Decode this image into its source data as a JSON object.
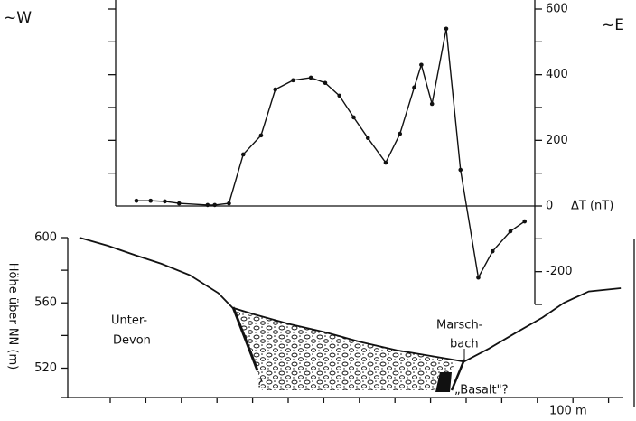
{
  "chart_data": [
    {
      "type": "line",
      "markers": true,
      "color": "#111111",
      "y_label": "ΔT (nT)",
      "x": [
        18,
        22,
        26,
        30,
        38,
        40,
        44,
        48,
        53,
        57,
        62,
        67,
        71,
        75,
        79,
        83,
        88,
        92,
        96,
        98,
        101,
        105,
        109,
        114,
        118,
        123,
        127
      ],
      "values": [
        16,
        16,
        14,
        8,
        3,
        3,
        8,
        157,
        215,
        355,
        383,
        391,
        375,
        336,
        270,
        207,
        132,
        220,
        361,
        430,
        311,
        540,
        110,
        -218,
        -138,
        -77,
        -47
      ],
      "xlim": [
        0,
        157
      ],
      "ylim": [
        -300,
        600
      ],
      "yticks": [
        -200,
        0,
        200,
        400,
        600
      ]
    },
    {
      "type": "profile",
      "color": "#111111",
      "y_label": "Höhe über NN (m)",
      "x": [
        2,
        10,
        18,
        25,
        33,
        41,
        45,
        51,
        61,
        71,
        81,
        91,
        102,
        110,
        117,
        124,
        132,
        138,
        145,
        154
      ],
      "values": [
        600,
        595,
        589,
        584,
        577,
        566,
        557,
        553,
        547,
        542,
        536,
        531,
        527,
        524,
        532,
        541,
        551,
        560,
        567,
        569
      ],
      "xlim": [
        0,
        157
      ],
      "ylim": [
        502,
        600
      ],
      "yticks": [
        520,
        560,
        600
      ]
    }
  ],
  "labels": {
    "west": "~W",
    "east": "~E",
    "unit_left": "Unter-",
    "unit_left_2": "Devon",
    "creek": "Marsch-",
    "creek_2": "bach",
    "basalt": "„Basalt\"?",
    "query": "?",
    "scale": "100 m"
  }
}
